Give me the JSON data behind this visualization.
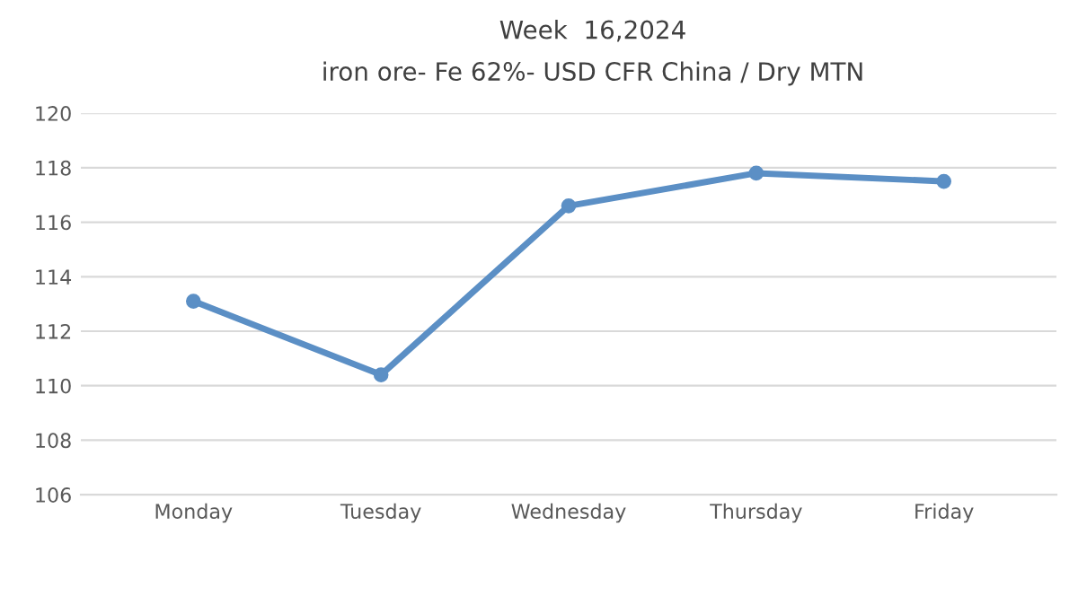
{
  "chart_data": {
    "type": "line",
    "title": "Week  16,2024",
    "subtitle": "iron ore- Fe 62%- USD CFR China / Dry MTN",
    "categories": [
      "Monday",
      "Tuesday",
      "Wednesday",
      "Thursday",
      "Friday"
    ],
    "series": [
      {
        "color": "#5b8fc5",
        "values": [
          113.1,
          110.4,
          116.6,
          117.8,
          117.5
        ]
      }
    ],
    "ylim": [
      106,
      120
    ],
    "yticks": [
      106,
      108,
      110,
      112,
      114,
      116,
      118,
      120
    ],
    "grid": "y",
    "marker": "circle",
    "line_style": "solid"
  }
}
